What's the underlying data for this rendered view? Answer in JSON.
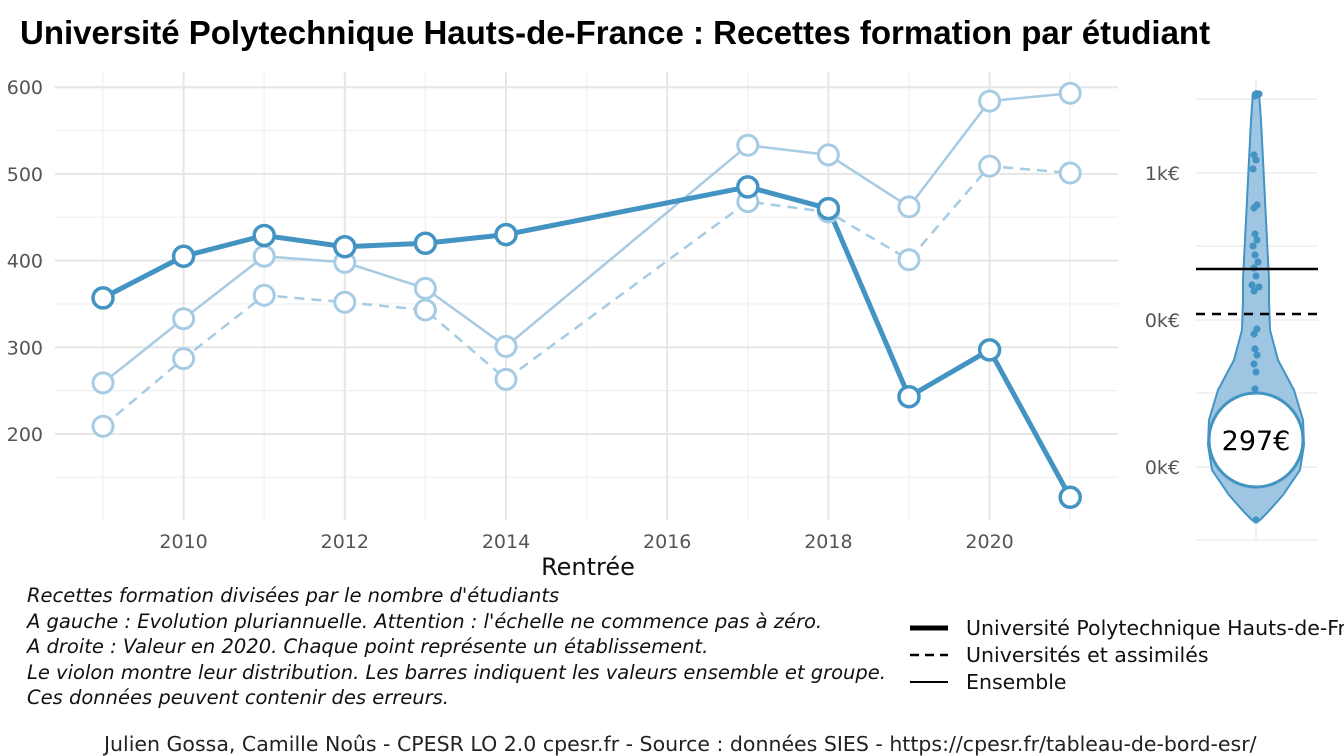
{
  "title": "Université Polytechnique Hauts-de-France  :  Recettes formation par étudiant",
  "chart_data": [
    {
      "type": "line",
      "xlabel": "Rentrée",
      "ylabel": "",
      "x": [
        2009,
        2010,
        2011,
        2012,
        2013,
        2014,
        2017,
        2018,
        2019,
        2020,
        2021
      ],
      "xticks": [
        "2010",
        "2012",
        "2014",
        "2016",
        "2018",
        "2020"
      ],
      "yticks": [
        "200",
        "300",
        "400",
        "500",
        "600"
      ],
      "ylim": [
        108,
        617
      ],
      "grid": true,
      "series": [
        {
          "name": "Université Polytechnique Hauts-de-France",
          "style": "bold-solid",
          "color": "#4393c3",
          "values": [
            357,
            405,
            429,
            416,
            420,
            430,
            485,
            460,
            243,
            297,
            127
          ]
        },
        {
          "name": "Universités et assimilés",
          "style": "dashed",
          "color": "#a6cbe3",
          "values": [
            209,
            287,
            360,
            352,
            343,
            263,
            468,
            456,
            401,
            509,
            501
          ]
        },
        {
          "name": "Ensemble",
          "style": "thin-solid",
          "color": "#a6cbe3",
          "values": [
            259,
            333,
            405,
            398,
            368,
            301,
            533,
            522,
            462,
            584,
            593
          ]
        }
      ]
    },
    {
      "type": "violin",
      "year": 2020,
      "yticks": [
        "1k€",
        "0k€",
        "0k€"
      ],
      "highlight_label": "297€",
      "color": "#4393c3",
      "fill": "#9ec6e2"
    }
  ],
  "notes": [
    "Recettes formation divisées par le nombre d'étudiants",
    "A gauche : Evolution pluriannuelle. Attention : l'échelle ne commence pas à zéro.",
    "A droite : Valeur en 2020. Chaque point représente un établissement.",
    "Le violon montre leur distribution. Les barres indiquent les valeurs ensemble et groupe.",
    "Ces données peuvent contenir des erreurs."
  ],
  "legend": [
    {
      "label": "Université Polytechnique Hauts-de-France",
      "style": "bold-solid"
    },
    {
      "label": "Universités et assimilés",
      "style": "dashed"
    },
    {
      "label": "Ensemble",
      "style": "thin-solid"
    }
  ],
  "credit": "Julien Gossa, Camille Noûs - CPESR LO 2.0 cpesr.fr - Source : données SIES - https://cpesr.fr/tableau-de-bord-esr/"
}
